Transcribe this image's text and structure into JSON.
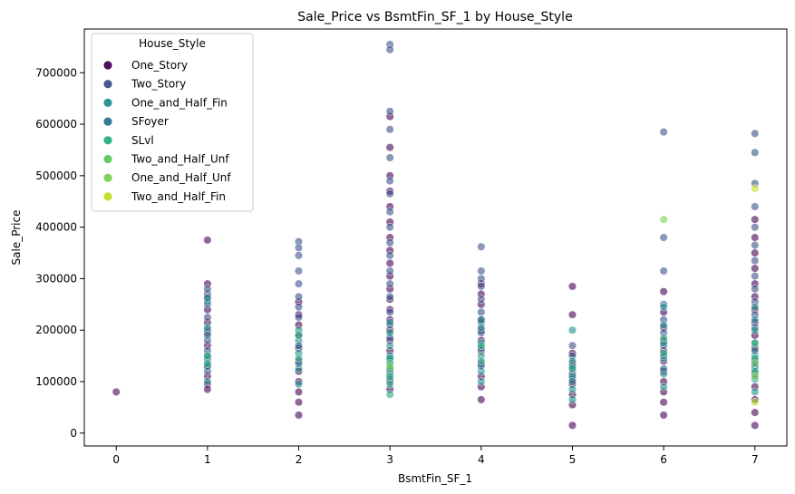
{
  "chart_data": {
    "type": "scatter",
    "title": "Sale_Price vs BsmtFin_SF_1 by House_Style",
    "xlabel": "BsmtFin_SF_1",
    "ylabel": "Sale_Price",
    "xlim": [
      -0.35,
      7.35
    ],
    "ylim": [
      -25000,
      785000
    ],
    "xticks": [
      0,
      1,
      2,
      3,
      4,
      5,
      6,
      7
    ],
    "yticks": [
      0,
      100000,
      200000,
      300000,
      400000,
      500000,
      600000,
      700000
    ],
    "grid": false,
    "legend": {
      "title": "House_Style",
      "placement": "top-left"
    },
    "series": [
      {
        "name": "One_Story",
        "color": "#440154",
        "points": [
          [
            0,
            80000
          ],
          [
            1,
            375000
          ],
          [
            1,
            290000
          ],
          [
            1,
            270000
          ],
          [
            1,
            240000
          ],
          [
            1,
            215000
          ],
          [
            1,
            195000
          ],
          [
            1,
            170000
          ],
          [
            1,
            150000
          ],
          [
            1,
            130000
          ],
          [
            1,
            110000
          ],
          [
            1,
            95000
          ],
          [
            1,
            85000
          ],
          [
            2,
            255000
          ],
          [
            2,
            230000
          ],
          [
            2,
            210000
          ],
          [
            2,
            190000
          ],
          [
            2,
            165000
          ],
          [
            2,
            140000
          ],
          [
            2,
            120000
          ],
          [
            2,
            100000
          ],
          [
            2,
            80000
          ],
          [
            2,
            60000
          ],
          [
            2,
            35000
          ],
          [
            3,
            615000
          ],
          [
            3,
            555000
          ],
          [
            3,
            500000
          ],
          [
            3,
            470000
          ],
          [
            3,
            440000
          ],
          [
            3,
            410000
          ],
          [
            3,
            380000
          ],
          [
            3,
            355000
          ],
          [
            3,
            330000
          ],
          [
            3,
            305000
          ],
          [
            3,
            280000
          ],
          [
            3,
            260000
          ],
          [
            3,
            240000
          ],
          [
            3,
            220000
          ],
          [
            3,
            200000
          ],
          [
            3,
            180000
          ],
          [
            3,
            160000
          ],
          [
            3,
            140000
          ],
          [
            3,
            120000
          ],
          [
            3,
            100000
          ],
          [
            3,
            85000
          ],
          [
            4,
            290000
          ],
          [
            4,
            270000
          ],
          [
            4,
            250000
          ],
          [
            4,
            220000
          ],
          [
            4,
            200000
          ],
          [
            4,
            180000
          ],
          [
            4,
            160000
          ],
          [
            4,
            135000
          ],
          [
            4,
            110000
          ],
          [
            4,
            90000
          ],
          [
            4,
            65000
          ],
          [
            5,
            285000
          ],
          [
            5,
            230000
          ],
          [
            5,
            155000
          ],
          [
            5,
            135000
          ],
          [
            5,
            115000
          ],
          [
            5,
            95000
          ],
          [
            5,
            75000
          ],
          [
            5,
            55000
          ],
          [
            5,
            15000
          ],
          [
            6,
            275000
          ],
          [
            6,
            235000
          ],
          [
            6,
            205000
          ],
          [
            6,
            180000
          ],
          [
            6,
            160000
          ],
          [
            6,
            140000
          ],
          [
            6,
            120000
          ],
          [
            6,
            100000
          ],
          [
            6,
            80000
          ],
          [
            6,
            60000
          ],
          [
            6,
            35000
          ],
          [
            7,
            415000
          ],
          [
            7,
            380000
          ],
          [
            7,
            350000
          ],
          [
            7,
            320000
          ],
          [
            7,
            290000
          ],
          [
            7,
            265000
          ],
          [
            7,
            240000
          ],
          [
            7,
            215000
          ],
          [
            7,
            190000
          ],
          [
            7,
            165000
          ],
          [
            7,
            140000
          ],
          [
            7,
            115000
          ],
          [
            7,
            90000
          ],
          [
            7,
            65000
          ],
          [
            7,
            40000
          ],
          [
            7,
            15000
          ]
        ]
      },
      {
        "name": "Two_Story",
        "color": "#3b528b",
        "points": [
          [
            1,
            280000
          ],
          [
            1,
            250000
          ],
          [
            1,
            225000
          ],
          [
            1,
            200000
          ],
          [
            1,
            180000
          ],
          [
            1,
            160000
          ],
          [
            1,
            140000
          ],
          [
            1,
            120000
          ],
          [
            2,
            372000
          ],
          [
            2,
            360000
          ],
          [
            2,
            345000
          ],
          [
            2,
            315000
          ],
          [
            2,
            290000
          ],
          [
            2,
            265000
          ],
          [
            2,
            245000
          ],
          [
            2,
            225000
          ],
          [
            3,
            755000
          ],
          [
            3,
            745000
          ],
          [
            3,
            625000
          ],
          [
            3,
            590000
          ],
          [
            3,
            535000
          ],
          [
            3,
            490000
          ],
          [
            3,
            465000
          ],
          [
            3,
            430000
          ],
          [
            3,
            400000
          ],
          [
            3,
            370000
          ],
          [
            3,
            345000
          ],
          [
            3,
            315000
          ],
          [
            3,
            290000
          ],
          [
            3,
            265000
          ],
          [
            3,
            235000
          ],
          [
            3,
            210000
          ],
          [
            3,
            185000
          ],
          [
            4,
            362000
          ],
          [
            4,
            315000
          ],
          [
            4,
            300000
          ],
          [
            4,
            285000
          ],
          [
            4,
            260000
          ],
          [
            4,
            235000
          ],
          [
            4,
            215000
          ],
          [
            4,
            195000
          ],
          [
            5,
            170000
          ],
          [
            5,
            150000
          ],
          [
            5,
            125000
          ],
          [
            5,
            105000
          ],
          [
            6,
            585000
          ],
          [
            6,
            380000
          ],
          [
            6,
            315000
          ],
          [
            6,
            250000
          ],
          [
            6,
            220000
          ],
          [
            6,
            195000
          ],
          [
            6,
            170000
          ],
          [
            7,
            582000
          ],
          [
            7,
            545000
          ],
          [
            7,
            485000
          ],
          [
            7,
            440000
          ],
          [
            7,
            400000
          ],
          [
            7,
            365000
          ],
          [
            7,
            335000
          ],
          [
            7,
            305000
          ],
          [
            7,
            280000
          ],
          [
            7,
            255000
          ],
          [
            7,
            230000
          ],
          [
            7,
            205000
          ]
        ]
      },
      {
        "name": "One_and_Half_Fin",
        "color": "#21918c",
        "points": [
          [
            1,
            265000
          ],
          [
            1,
            255000
          ],
          [
            1,
            205000
          ],
          [
            1,
            145000
          ],
          [
            1,
            100000
          ],
          [
            2,
            200000
          ],
          [
            2,
            180000
          ],
          [
            2,
            155000
          ],
          [
            2,
            125000
          ],
          [
            2,
            95000
          ],
          [
            3,
            215000
          ],
          [
            3,
            195000
          ],
          [
            3,
            170000
          ],
          [
            3,
            145000
          ],
          [
            3,
            115000
          ],
          [
            4,
            220000
          ],
          [
            4,
            205000
          ],
          [
            4,
            175000
          ],
          [
            4,
            150000
          ],
          [
            4,
            120000
          ],
          [
            4,
            100000
          ],
          [
            5,
            200000
          ],
          [
            5,
            140000
          ],
          [
            5,
            110000
          ],
          [
            5,
            85000
          ],
          [
            5,
            65000
          ],
          [
            6,
            245000
          ],
          [
            6,
            210000
          ],
          [
            6,
            175000
          ],
          [
            6,
            145000
          ],
          [
            6,
            115000
          ],
          [
            6,
            90000
          ],
          [
            7,
            245000
          ],
          [
            7,
            220000
          ],
          [
            7,
            200000
          ],
          [
            7,
            175000
          ],
          [
            7,
            150000
          ],
          [
            7,
            125000
          ],
          [
            7,
            105000
          ],
          [
            7,
            80000
          ]
        ]
      },
      {
        "name": "SFoyer",
        "color": "#2c728e",
        "points": [
          [
            1,
            262000
          ],
          [
            1,
            190000
          ],
          [
            1,
            130000
          ],
          [
            2,
            170000
          ],
          [
            2,
            135000
          ],
          [
            3,
            150000
          ],
          [
            3,
            125000
          ],
          [
            3,
            105000
          ],
          [
            4,
            165000
          ],
          [
            4,
            130000
          ],
          [
            5,
            130000
          ],
          [
            5,
            100000
          ],
          [
            6,
            150000
          ],
          [
            6,
            125000
          ],
          [
            7,
            160000
          ],
          [
            7,
            130000
          ]
        ]
      },
      {
        "name": "SLvl",
        "color": "#28ae80",
        "points": [
          [
            1,
            150000
          ],
          [
            1,
            135000
          ],
          [
            2,
            190000
          ],
          [
            2,
            145000
          ],
          [
            3,
            145000
          ],
          [
            3,
            135000
          ],
          [
            3,
            125000
          ],
          [
            3,
            110000
          ],
          [
            3,
            95000
          ],
          [
            3,
            75000
          ],
          [
            4,
            170000
          ],
          [
            4,
            140000
          ],
          [
            5,
            125000
          ],
          [
            6,
            185000
          ],
          [
            6,
            155000
          ],
          [
            7,
            175000
          ],
          [
            7,
            145000
          ],
          [
            7,
            120000
          ]
        ]
      },
      {
        "name": "Two_and_Half_Unf",
        "color": "#5ec962",
        "points": [
          [
            7,
            135000
          ]
        ]
      },
      {
        "name": "One_and_Half_Unf",
        "color": "#79d151",
        "points": [
          [
            6,
            415000
          ],
          [
            7,
            110000
          ],
          [
            3,
            130000
          ]
        ]
      },
      {
        "name": "Two_and_Half_Fin",
        "color": "#bddf26",
        "points": [
          [
            7,
            475000
          ],
          [
            7,
            60000
          ]
        ]
      }
    ]
  }
}
